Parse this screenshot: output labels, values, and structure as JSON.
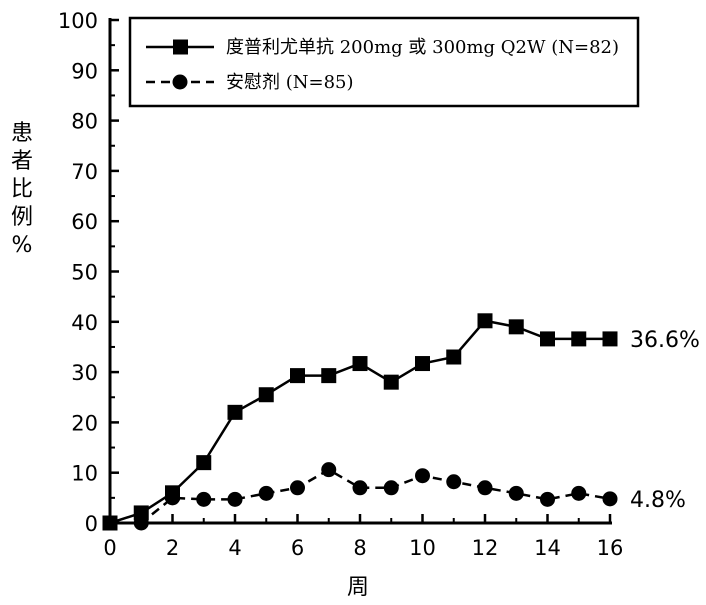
{
  "chart_data": {
    "type": "line",
    "title": "",
    "xlabel": "周",
    "ylabel": "患者比例%",
    "xlim": [
      0,
      16
    ],
    "ylim": [
      0,
      100
    ],
    "x_ticks": [
      "0",
      "2",
      "4",
      "6",
      "8",
      "10",
      "12",
      "14",
      "16"
    ],
    "y_ticks": [
      "0",
      "10",
      "20",
      "30",
      "40",
      "50",
      "60",
      "70",
      "80",
      "90",
      "100"
    ],
    "grid": false,
    "legend_position": "top-right",
    "series": [
      {
        "name": "度普利尤单抗 200mg 或 300mg Q2W (N=82)",
        "marker": "square",
        "line_style": "solid",
        "x": [
          0,
          1,
          2,
          3,
          4,
          5,
          6,
          7,
          8,
          9,
          10,
          11,
          12,
          13,
          14,
          15,
          16
        ],
        "y": [
          0,
          2,
          6,
          12,
          22,
          25.5,
          29.3,
          29.3,
          31.7,
          28,
          31.7,
          33,
          40.2,
          39,
          36.6,
          36.6,
          36.6
        ],
        "end_label": "36.6%"
      },
      {
        "name": "安慰剂 (N=85)",
        "marker": "circle",
        "line_style": "dashed",
        "x": [
          0,
          1,
          2,
          3,
          4,
          5,
          6,
          7,
          8,
          9,
          10,
          11,
          12,
          13,
          14,
          15,
          16
        ],
        "y": [
          0,
          0,
          5,
          4.7,
          4.7,
          5.9,
          7,
          10.6,
          7,
          7,
          9.4,
          8.2,
          7,
          5.9,
          4.7,
          5.9,
          4.8
        ],
        "end_label": "4.8%"
      }
    ]
  }
}
